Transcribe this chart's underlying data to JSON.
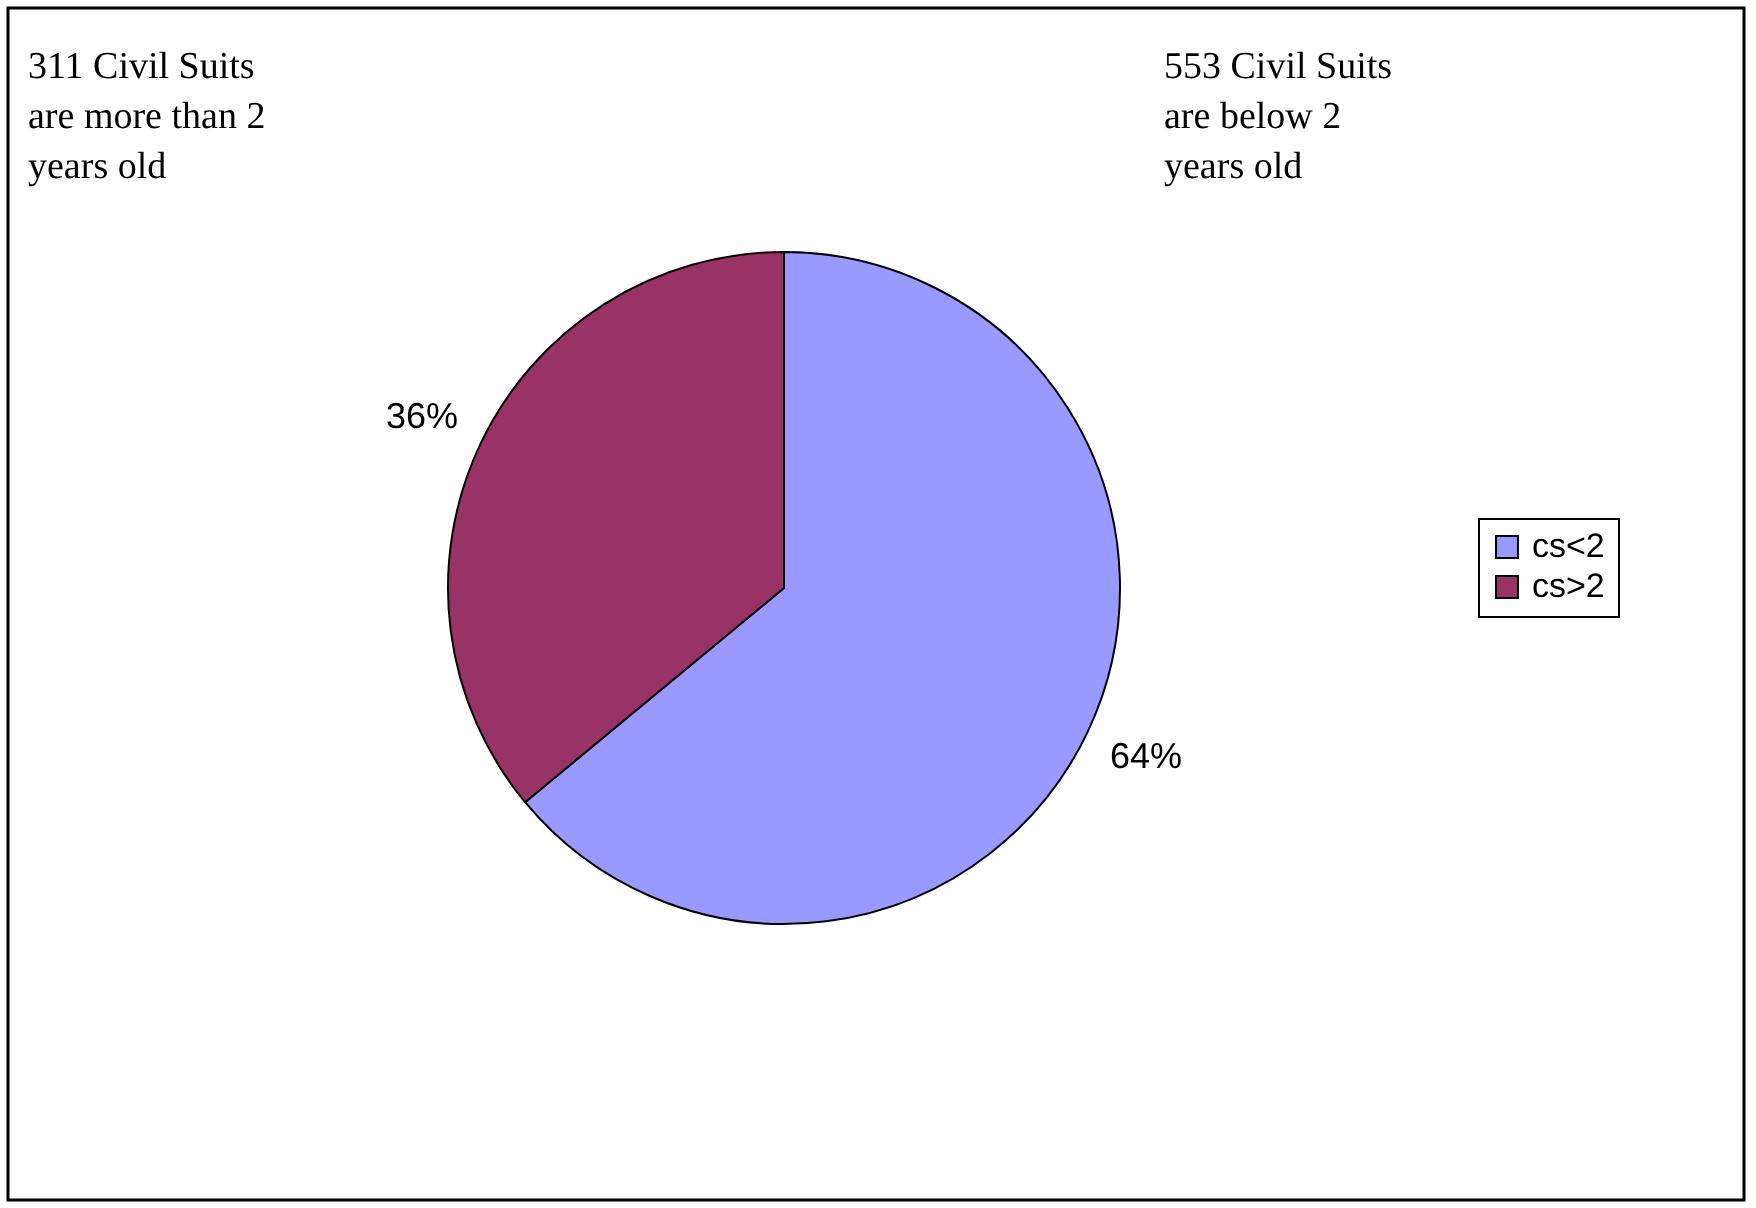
{
  "chart_data": {
    "type": "pie",
    "categories": [
      "cs<2",
      "cs>2"
    ],
    "values": [
      64,
      36
    ],
    "colors": [
      "#9999ff",
      "#993366"
    ],
    "value_labels": [
      "64%",
      "36%"
    ],
    "legend": "right",
    "annotations": [
      "311 Civil Suits\nare more than 2\nyears old",
      "553 Civil Suits\nare below 2\nyears old"
    ]
  }
}
